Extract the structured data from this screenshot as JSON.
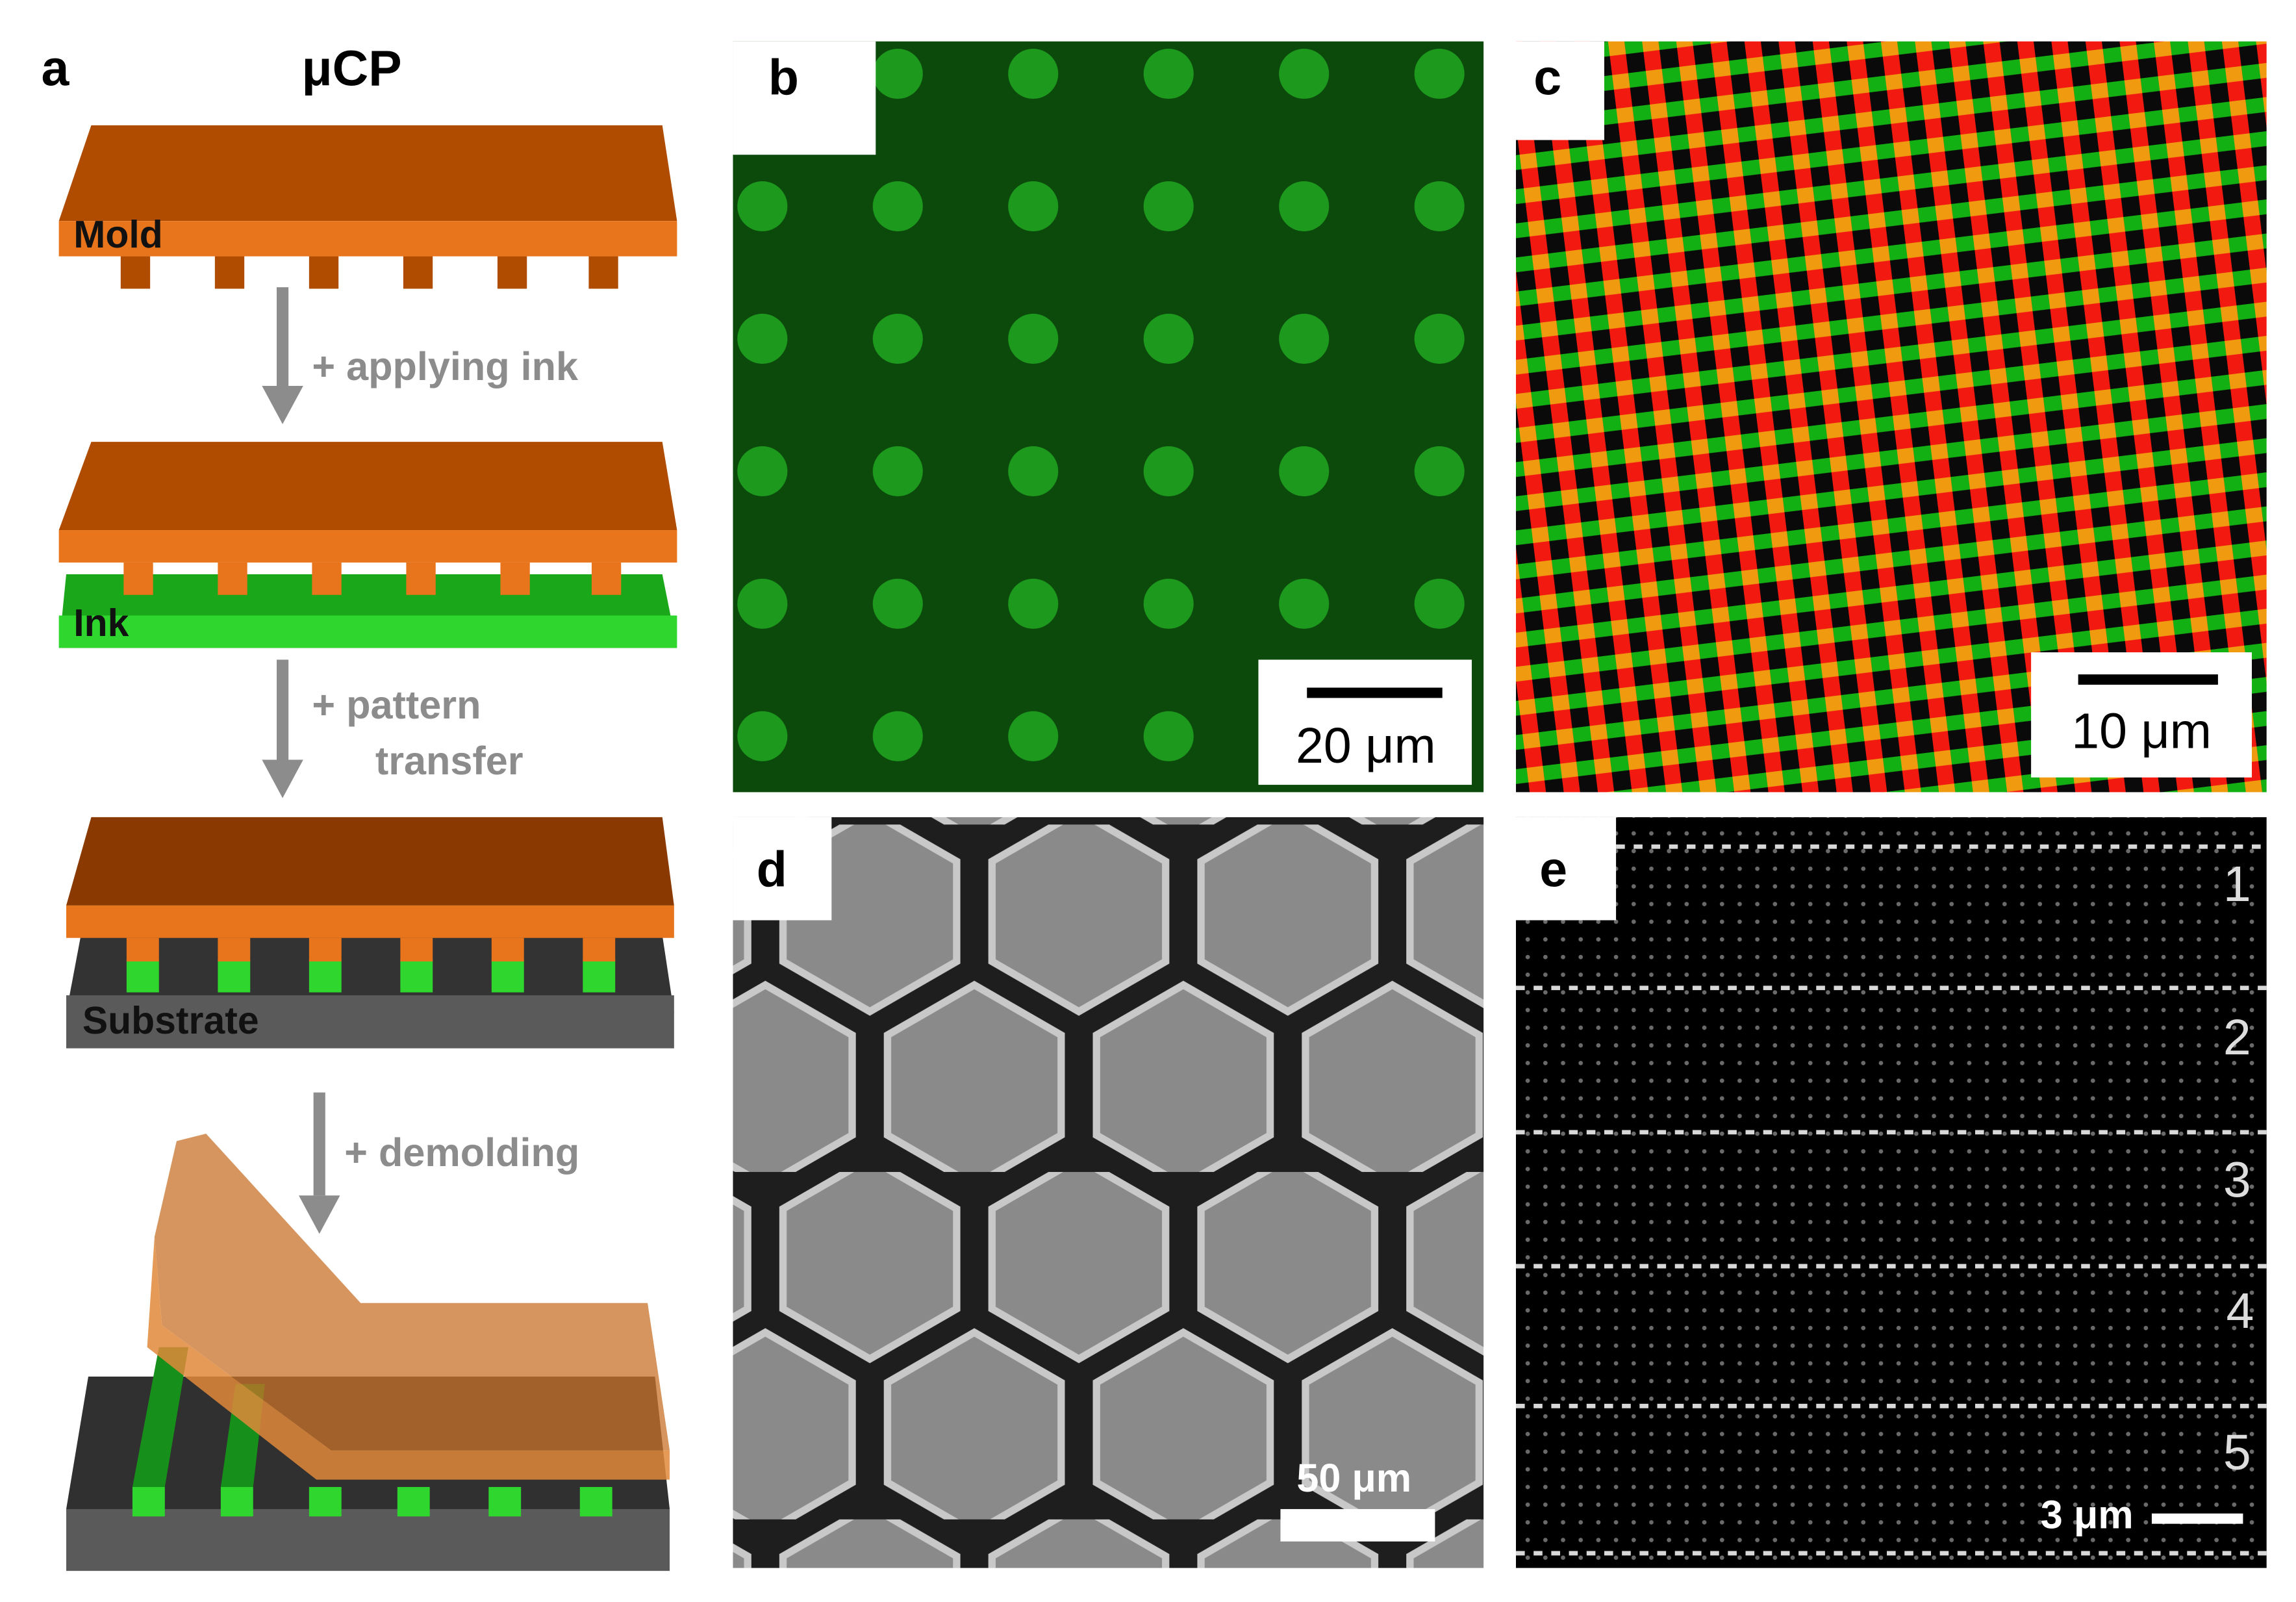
{
  "panel_a": {
    "label": "a",
    "title": "μCP",
    "mold": "Mold",
    "ink": "Ink",
    "substrate": "Substrate",
    "steps": [
      "+ applying ink",
      "+ pattern",
      "transfer",
      "+ demolding"
    ]
  },
  "panel_b": {
    "label": "b",
    "scale_bar": "20 μm"
  },
  "panel_c": {
    "label": "c",
    "scale_bar": "10 μm"
  },
  "panel_d": {
    "label": "d",
    "scale_bar": "50 μm"
  },
  "panel_e": {
    "label": "e",
    "scale_bar": "3 μm",
    "rows": [
      "1",
      "2",
      "3",
      "4",
      "5"
    ]
  }
}
